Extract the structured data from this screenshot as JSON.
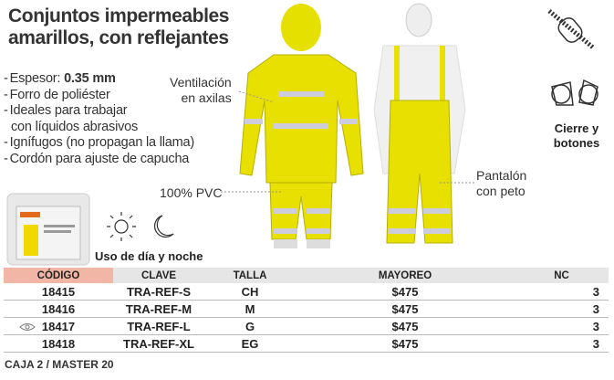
{
  "header": {
    "title_lines": [
      "Conjuntos impermeables",
      "amarillos, con reflejantes"
    ]
  },
  "features": {
    "thickness": {
      "label": "Espesor:",
      "value": "0.35 mm"
    },
    "items": [
      [
        "Forro de poliéster"
      ],
      [
        "Ideales para trabajar",
        "con líquidos abrasivos"
      ],
      [
        "Ignífugos (no propagan la llama)"
      ],
      [
        "Cordón para ajuste de capucha"
      ]
    ]
  },
  "callouts": {
    "ventilation": [
      "Ventilación",
      "en axilas"
    ],
    "material": "100% PVC",
    "pants": [
      "Pantalón",
      "con peto"
    ],
    "closure": [
      "Cierre y",
      "botones"
    ],
    "day_night": "Uso de día y noche"
  },
  "table": {
    "headers": [
      "CÓDIGO",
      "CLAVE",
      "TALLA",
      "MAYOREO",
      "NC"
    ],
    "rows": [
      [
        "18415",
        "TRA-REF-S",
        "CH",
        "$475",
        "3"
      ],
      [
        "18416",
        "TRA-REF-M",
        "M",
        "$475",
        "3"
      ],
      [
        "18417",
        "TRA-REF-L",
        "G",
        "$475",
        "3"
      ],
      [
        "18418",
        "TRA-REF-XL",
        "EG",
        "$475",
        "3"
      ]
    ]
  },
  "footer": "CAJA 2 / MASTER 20"
}
